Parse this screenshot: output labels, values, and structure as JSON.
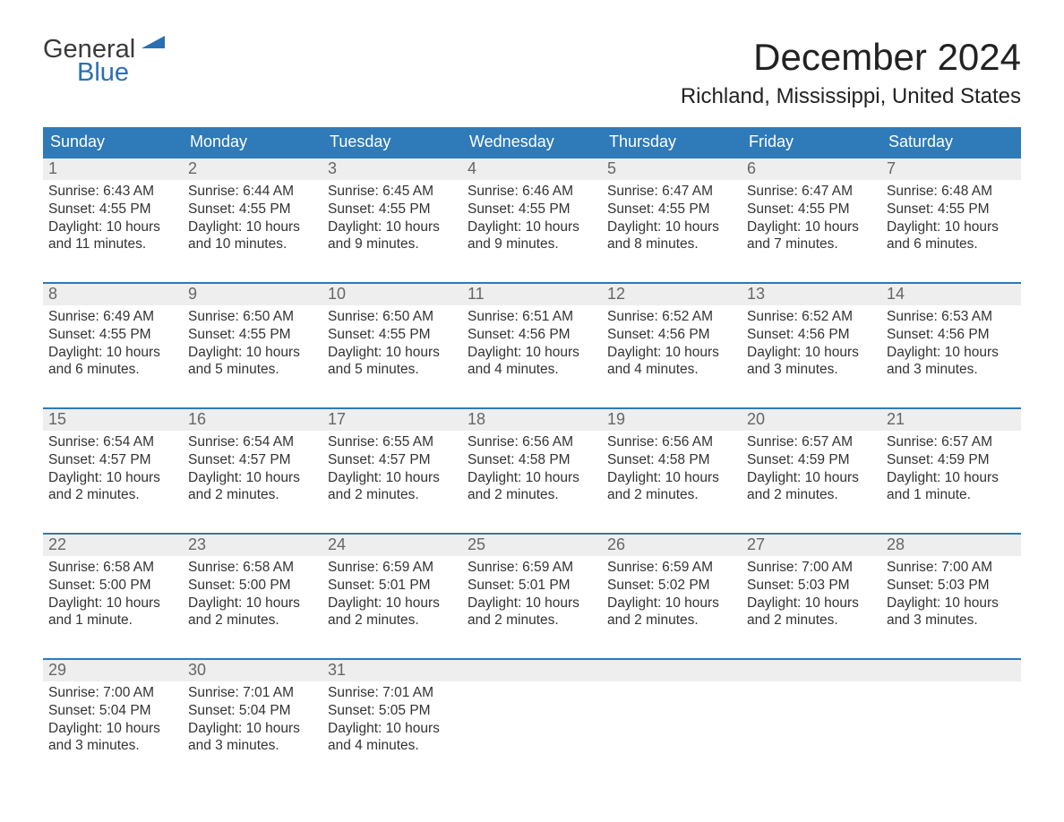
{
  "brand": {
    "word1": "General",
    "word2": "Blue",
    "text_color": "#3a3a3a",
    "accent_color": "#2a6fb0"
  },
  "header": {
    "month_title": "December 2024",
    "location": "Richland, Mississippi, United States"
  },
  "colors": {
    "header_row_bg": "#2f7ab8",
    "header_row_text": "#ffffff",
    "week_border": "#2f7ab8",
    "daynum_bg": "#eeeeee",
    "daynum_text": "#666666",
    "body_text": "#333333",
    "page_bg": "#ffffff"
  },
  "dow": [
    "Sunday",
    "Monday",
    "Tuesday",
    "Wednesday",
    "Thursday",
    "Friday",
    "Saturday"
  ],
  "weeks": [
    [
      {
        "n": "1",
        "sunrise": "Sunrise: 6:43 AM",
        "sunset": "Sunset: 4:55 PM",
        "daylight": "Daylight: 10 hours and 11 minutes."
      },
      {
        "n": "2",
        "sunrise": "Sunrise: 6:44 AM",
        "sunset": "Sunset: 4:55 PM",
        "daylight": "Daylight: 10 hours and 10 minutes."
      },
      {
        "n": "3",
        "sunrise": "Sunrise: 6:45 AM",
        "sunset": "Sunset: 4:55 PM",
        "daylight": "Daylight: 10 hours and 9 minutes."
      },
      {
        "n": "4",
        "sunrise": "Sunrise: 6:46 AM",
        "sunset": "Sunset: 4:55 PM",
        "daylight": "Daylight: 10 hours and 9 minutes."
      },
      {
        "n": "5",
        "sunrise": "Sunrise: 6:47 AM",
        "sunset": "Sunset: 4:55 PM",
        "daylight": "Daylight: 10 hours and 8 minutes."
      },
      {
        "n": "6",
        "sunrise": "Sunrise: 6:47 AM",
        "sunset": "Sunset: 4:55 PM",
        "daylight": "Daylight: 10 hours and 7 minutes."
      },
      {
        "n": "7",
        "sunrise": "Sunrise: 6:48 AM",
        "sunset": "Sunset: 4:55 PM",
        "daylight": "Daylight: 10 hours and 6 minutes."
      }
    ],
    [
      {
        "n": "8",
        "sunrise": "Sunrise: 6:49 AM",
        "sunset": "Sunset: 4:55 PM",
        "daylight": "Daylight: 10 hours and 6 minutes."
      },
      {
        "n": "9",
        "sunrise": "Sunrise: 6:50 AM",
        "sunset": "Sunset: 4:55 PM",
        "daylight": "Daylight: 10 hours and 5 minutes."
      },
      {
        "n": "10",
        "sunrise": "Sunrise: 6:50 AM",
        "sunset": "Sunset: 4:55 PM",
        "daylight": "Daylight: 10 hours and 5 minutes."
      },
      {
        "n": "11",
        "sunrise": "Sunrise: 6:51 AM",
        "sunset": "Sunset: 4:56 PM",
        "daylight": "Daylight: 10 hours and 4 minutes."
      },
      {
        "n": "12",
        "sunrise": "Sunrise: 6:52 AM",
        "sunset": "Sunset: 4:56 PM",
        "daylight": "Daylight: 10 hours and 4 minutes."
      },
      {
        "n": "13",
        "sunrise": "Sunrise: 6:52 AM",
        "sunset": "Sunset: 4:56 PM",
        "daylight": "Daylight: 10 hours and 3 minutes."
      },
      {
        "n": "14",
        "sunrise": "Sunrise: 6:53 AM",
        "sunset": "Sunset: 4:56 PM",
        "daylight": "Daylight: 10 hours and 3 minutes."
      }
    ],
    [
      {
        "n": "15",
        "sunrise": "Sunrise: 6:54 AM",
        "sunset": "Sunset: 4:57 PM",
        "daylight": "Daylight: 10 hours and 2 minutes."
      },
      {
        "n": "16",
        "sunrise": "Sunrise: 6:54 AM",
        "sunset": "Sunset: 4:57 PM",
        "daylight": "Daylight: 10 hours and 2 minutes."
      },
      {
        "n": "17",
        "sunrise": "Sunrise: 6:55 AM",
        "sunset": "Sunset: 4:57 PM",
        "daylight": "Daylight: 10 hours and 2 minutes."
      },
      {
        "n": "18",
        "sunrise": "Sunrise: 6:56 AM",
        "sunset": "Sunset: 4:58 PM",
        "daylight": "Daylight: 10 hours and 2 minutes."
      },
      {
        "n": "19",
        "sunrise": "Sunrise: 6:56 AM",
        "sunset": "Sunset: 4:58 PM",
        "daylight": "Daylight: 10 hours and 2 minutes."
      },
      {
        "n": "20",
        "sunrise": "Sunrise: 6:57 AM",
        "sunset": "Sunset: 4:59 PM",
        "daylight": "Daylight: 10 hours and 2 minutes."
      },
      {
        "n": "21",
        "sunrise": "Sunrise: 6:57 AM",
        "sunset": "Sunset: 4:59 PM",
        "daylight": "Daylight: 10 hours and 1 minute."
      }
    ],
    [
      {
        "n": "22",
        "sunrise": "Sunrise: 6:58 AM",
        "sunset": "Sunset: 5:00 PM",
        "daylight": "Daylight: 10 hours and 1 minute."
      },
      {
        "n": "23",
        "sunrise": "Sunrise: 6:58 AM",
        "sunset": "Sunset: 5:00 PM",
        "daylight": "Daylight: 10 hours and 2 minutes."
      },
      {
        "n": "24",
        "sunrise": "Sunrise: 6:59 AM",
        "sunset": "Sunset: 5:01 PM",
        "daylight": "Daylight: 10 hours and 2 minutes."
      },
      {
        "n": "25",
        "sunrise": "Sunrise: 6:59 AM",
        "sunset": "Sunset: 5:01 PM",
        "daylight": "Daylight: 10 hours and 2 minutes."
      },
      {
        "n": "26",
        "sunrise": "Sunrise: 6:59 AM",
        "sunset": "Sunset: 5:02 PM",
        "daylight": "Daylight: 10 hours and 2 minutes."
      },
      {
        "n": "27",
        "sunrise": "Sunrise: 7:00 AM",
        "sunset": "Sunset: 5:03 PM",
        "daylight": "Daylight: 10 hours and 2 minutes."
      },
      {
        "n": "28",
        "sunrise": "Sunrise: 7:00 AM",
        "sunset": "Sunset: 5:03 PM",
        "daylight": "Daylight: 10 hours and 3 minutes."
      }
    ],
    [
      {
        "n": "29",
        "sunrise": "Sunrise: 7:00 AM",
        "sunset": "Sunset: 5:04 PM",
        "daylight": "Daylight: 10 hours and 3 minutes."
      },
      {
        "n": "30",
        "sunrise": "Sunrise: 7:01 AM",
        "sunset": "Sunset: 5:04 PM",
        "daylight": "Daylight: 10 hours and 3 minutes."
      },
      {
        "n": "31",
        "sunrise": "Sunrise: 7:01 AM",
        "sunset": "Sunset: 5:05 PM",
        "daylight": "Daylight: 10 hours and 4 minutes."
      },
      {
        "n": "",
        "sunrise": "",
        "sunset": "",
        "daylight": ""
      },
      {
        "n": "",
        "sunrise": "",
        "sunset": "",
        "daylight": ""
      },
      {
        "n": "",
        "sunrise": "",
        "sunset": "",
        "daylight": ""
      },
      {
        "n": "",
        "sunrise": "",
        "sunset": "",
        "daylight": ""
      }
    ]
  ]
}
